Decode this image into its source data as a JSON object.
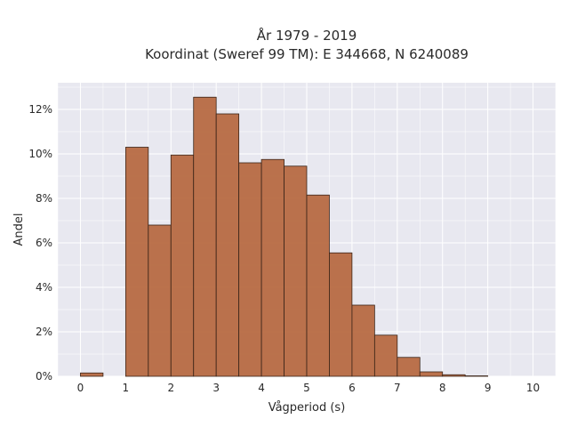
{
  "chart_data": {
    "type": "bar",
    "title_line1": "År 1979 - 2019",
    "title_line2": "Koordinat (Sweref 99 TM): E 344668, N 6240089",
    "xlabel": "Vågperiod (s)",
    "ylabel": "Andel",
    "xlim": [
      -0.5,
      10.5
    ],
    "ylim": [
      0,
      13.2
    ],
    "x_ticks": [
      0,
      1,
      2,
      3,
      4,
      5,
      6,
      7,
      8,
      9,
      10
    ],
    "x_tick_labels": [
      "0",
      "1",
      "2",
      "3",
      "4",
      "5",
      "6",
      "7",
      "8",
      "9",
      "10"
    ],
    "y_ticks": [
      0,
      2,
      4,
      6,
      8,
      10,
      12
    ],
    "y_tick_labels": [
      "0%",
      "2%",
      "4%",
      "6%",
      "8%",
      "10%",
      "12%"
    ],
    "grid": true,
    "bar_color": "#b5643a",
    "bar_edge_color": "#3a2418",
    "background_color": "#e8e8f0",
    "bins": [
      {
        "x0": 0.0,
        "x1": 0.5,
        "value": 0.15
      },
      {
        "x0": 1.0,
        "x1": 1.5,
        "value": 10.3
      },
      {
        "x0": 1.5,
        "x1": 2.0,
        "value": 6.8
      },
      {
        "x0": 2.0,
        "x1": 2.5,
        "value": 9.95
      },
      {
        "x0": 2.5,
        "x1": 3.0,
        "value": 12.55
      },
      {
        "x0": 3.0,
        "x1": 3.5,
        "value": 11.8
      },
      {
        "x0": 3.5,
        "x1": 4.0,
        "value": 9.6
      },
      {
        "x0": 4.0,
        "x1": 4.5,
        "value": 9.75
      },
      {
        "x0": 4.5,
        "x1": 5.0,
        "value": 9.45
      },
      {
        "x0": 5.0,
        "x1": 5.5,
        "value": 8.15
      },
      {
        "x0": 5.5,
        "x1": 6.0,
        "value": 5.55
      },
      {
        "x0": 6.0,
        "x1": 6.5,
        "value": 3.2
      },
      {
        "x0": 6.5,
        "x1": 7.0,
        "value": 1.85
      },
      {
        "x0": 7.0,
        "x1": 7.5,
        "value": 0.85
      },
      {
        "x0": 7.5,
        "x1": 8.0,
        "value": 0.2
      },
      {
        "x0": 8.0,
        "x1": 8.5,
        "value": 0.07
      },
      {
        "x0": 8.5,
        "x1": 9.0,
        "value": 0.02
      }
    ]
  }
}
